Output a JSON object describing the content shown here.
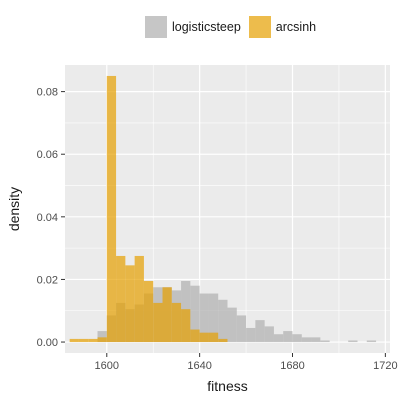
{
  "chart_data": {
    "type": "histogram",
    "xlabel": "fitness",
    "ylabel": "density",
    "xlim": [
      1582,
      1722
    ],
    "ylim": [
      -0.0035,
      0.0885
    ],
    "x_ticks": [
      1600,
      1640,
      1680,
      1720
    ],
    "x_tick_labels": [
      "1600",
      "1640",
      "1680",
      "1720"
    ],
    "y_ticks": [
      0.0,
      0.02,
      0.04,
      0.06,
      0.08
    ],
    "y_tick_labels": [
      "0.00",
      "0.02",
      "0.04",
      "0.06",
      "0.08"
    ],
    "grid": true,
    "legend_position": "top",
    "bin_width": 4,
    "series": [
      {
        "name": "logisticsteep",
        "color": "#b3b3b3",
        "bins": [
          {
            "x0": 1596,
            "x1": 1600,
            "density": 0.0035
          },
          {
            "x0": 1600,
            "x1": 1604,
            "density": 0.0085
          },
          {
            "x0": 1604,
            "x1": 1608,
            "density": 0.0125
          },
          {
            "x0": 1608,
            "x1": 1612,
            "density": 0.0105
          },
          {
            "x0": 1612,
            "x1": 1616,
            "density": 0.012
          },
          {
            "x0": 1616,
            "x1": 1620,
            "density": 0.0155
          },
          {
            "x0": 1620,
            "x1": 1624,
            "density": 0.0175
          },
          {
            "x0": 1624,
            "x1": 1628,
            "density": 0.0175
          },
          {
            "x0": 1628,
            "x1": 1632,
            "density": 0.0165
          },
          {
            "x0": 1632,
            "x1": 1636,
            "density": 0.0195
          },
          {
            "x0": 1636,
            "x1": 1640,
            "density": 0.018
          },
          {
            "x0": 1640,
            "x1": 1644,
            "density": 0.0155
          },
          {
            "x0": 1644,
            "x1": 1648,
            "density": 0.0155
          },
          {
            "x0": 1648,
            "x1": 1652,
            "density": 0.0135
          },
          {
            "x0": 1652,
            "x1": 1656,
            "density": 0.011
          },
          {
            "x0": 1656,
            "x1": 1660,
            "density": 0.0085
          },
          {
            "x0": 1660,
            "x1": 1664,
            "density": 0.0045
          },
          {
            "x0": 1664,
            "x1": 1668,
            "density": 0.007
          },
          {
            "x0": 1668,
            "x1": 1672,
            "density": 0.005
          },
          {
            "x0": 1672,
            "x1": 1676,
            "density": 0.0025
          },
          {
            "x0": 1676,
            "x1": 1680,
            "density": 0.0035
          },
          {
            "x0": 1680,
            "x1": 1684,
            "density": 0.0025
          },
          {
            "x0": 1684,
            "x1": 1688,
            "density": 0.0015
          },
          {
            "x0": 1688,
            "x1": 1692,
            "density": 0.0015
          },
          {
            "x0": 1692,
            "x1": 1696,
            "density": 0.0005
          },
          {
            "x0": 1704,
            "x1": 1708,
            "density": 0.0005
          },
          {
            "x0": 1712,
            "x1": 1716,
            "density": 0.0005
          }
        ]
      },
      {
        "name": "arcsinh",
        "color": "#e69f00",
        "bins": [
          {
            "x0": 1584,
            "x1": 1588,
            "density": 0.001
          },
          {
            "x0": 1588,
            "x1": 1592,
            "density": 0.001
          },
          {
            "x0": 1592,
            "x1": 1596,
            "density": 0.001
          },
          {
            "x0": 1596,
            "x1": 1600,
            "density": 0.0015
          },
          {
            "x0": 1600,
            "x1": 1604,
            "density": 0.085
          },
          {
            "x0": 1604,
            "x1": 1608,
            "density": 0.0275
          },
          {
            "x0": 1608,
            "x1": 1612,
            "density": 0.0245
          },
          {
            "x0": 1612,
            "x1": 1616,
            "density": 0.0275
          },
          {
            "x0": 1616,
            "x1": 1620,
            "density": 0.0195
          },
          {
            "x0": 1620,
            "x1": 1624,
            "density": 0.0125
          },
          {
            "x0": 1624,
            "x1": 1628,
            "density": 0.0175
          },
          {
            "x0": 1628,
            "x1": 1632,
            "density": 0.0125
          },
          {
            "x0": 1632,
            "x1": 1636,
            "density": 0.0105
          },
          {
            "x0": 1636,
            "x1": 1640,
            "density": 0.004
          },
          {
            "x0": 1640,
            "x1": 1644,
            "density": 0.003
          },
          {
            "x0": 1644,
            "x1": 1648,
            "density": 0.003
          },
          {
            "x0": 1648,
            "x1": 1652,
            "density": 0.001
          }
        ]
      }
    ]
  }
}
